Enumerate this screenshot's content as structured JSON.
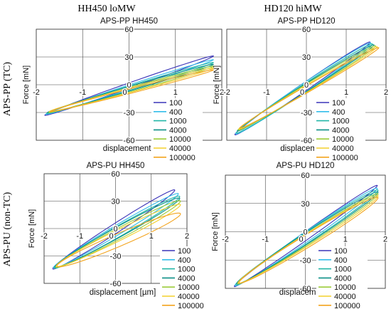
{
  "column_headers": [
    "HH450 loMW",
    "HD120 hiMW"
  ],
  "row_headers": [
    "APS-PP (TC)",
    "APS-PU (non-TC)"
  ],
  "series_colors": [
    "#3a33b8",
    "#33bdea",
    "#22b7a7",
    "#0b8f86",
    "#9ccc3a",
    "#f4d02c",
    "#f3a41f"
  ],
  "chart_data": [
    {
      "type": "line",
      "title": "APS-PP  HH450",
      "xlabel": "displacement [µm]",
      "ylabel": "Force [mN]",
      "xlim": [
        -2,
        2
      ],
      "ylim": [
        -60,
        60
      ],
      "xticks": [
        "-2",
        "-1",
        "0",
        "1",
        "2"
      ],
      "yticks": [
        "-60",
        "-30",
        "0",
        "30",
        "60"
      ],
      "grid": true,
      "legend": "right",
      "series": [
        {
          "name": "100",
          "x_range": [
            -1.82,
            1.82
          ],
          "y_at_xmin": -33,
          "y_at_xmax": 31,
          "loop_width": 6
        },
        {
          "name": "400",
          "x_range": [
            -1.8,
            1.82
          ],
          "y_at_xmin": -32,
          "y_at_xmax": 27,
          "loop_width": 5
        },
        {
          "name": "1000",
          "x_range": [
            -1.78,
            1.82
          ],
          "y_at_xmin": -31,
          "y_at_xmax": 24,
          "loop_width": 5
        },
        {
          "name": "4000",
          "x_range": [
            -1.76,
            1.82
          ],
          "y_at_xmin": -30,
          "y_at_xmax": 22,
          "loop_width": 5
        },
        {
          "name": "10000",
          "x_range": [
            -1.74,
            1.82
          ],
          "y_at_xmin": -30,
          "y_at_xmax": 20,
          "loop_width": 5
        },
        {
          "name": "40000",
          "x_range": [
            -1.72,
            1.82
          ],
          "y_at_xmin": -29,
          "y_at_xmax": 18,
          "loop_width": 5
        },
        {
          "name": "100000",
          "x_range": [
            -1.7,
            1.82
          ],
          "y_at_xmin": -29,
          "y_at_xmax": 16,
          "loop_width": 5
        }
      ]
    },
    {
      "type": "line",
      "title": "APS-PP HD120",
      "xlabel": "displacement [µm]",
      "ylabel": "Force [mN]",
      "xlim": [
        -2,
        2
      ],
      "ylim": [
        -60,
        60
      ],
      "xticks": [
        "-2",
        "-1",
        "0",
        "1",
        "2"
      ],
      "yticks": [
        "-60",
        "-30",
        "0",
        "30",
        "60"
      ],
      "grid": true,
      "legend": "right",
      "series": [
        {
          "name": "100",
          "x_range": [
            -1.8,
            1.6
          ],
          "y_at_xmin": -54,
          "y_at_xmax": 46,
          "loop_width": 10
        },
        {
          "name": "400",
          "x_range": [
            -1.78,
            1.62
          ],
          "y_at_xmin": -53,
          "y_at_xmax": 45,
          "loop_width": 11
        },
        {
          "name": "1000",
          "x_range": [
            -1.76,
            1.66
          ],
          "y_at_xmin": -52,
          "y_at_xmax": 44,
          "loop_width": 10
        },
        {
          "name": "4000",
          "x_range": [
            -1.74,
            1.7
          ],
          "y_at_xmin": -50,
          "y_at_xmax": 43,
          "loop_width": 9
        },
        {
          "name": "10000",
          "x_range": [
            -1.72,
            1.74
          ],
          "y_at_xmin": -49,
          "y_at_xmax": 42,
          "loop_width": 9
        },
        {
          "name": "40000",
          "x_range": [
            -1.7,
            1.78
          ],
          "y_at_xmin": -48,
          "y_at_xmax": 41,
          "loop_width": 8
        },
        {
          "name": "100000",
          "x_range": [
            -1.68,
            1.82
          ],
          "y_at_xmin": -47,
          "y_at_xmax": 40,
          "loop_width": 8
        }
      ]
    },
    {
      "type": "line",
      "title": "APS-PU  HH450",
      "xlabel": "displacement [µm]",
      "ylabel": "Force [mN]",
      "xlim": [
        -2,
        2
      ],
      "ylim": [
        -60,
        60
      ],
      "xticks": [
        "-2",
        "-1",
        "0",
        "1",
        "2"
      ],
      "yticks": [
        "-60",
        "-30",
        "0",
        "30",
        "60"
      ],
      "grid": true,
      "legend": "right",
      "series": [
        {
          "name": "100",
          "x_range": [
            -1.76,
            1.66
          ],
          "y_at_xmin": -44,
          "y_at_xmax": 42,
          "loop_width": 12
        },
        {
          "name": "400",
          "x_range": [
            -1.74,
            1.76
          ],
          "y_at_xmin": -43,
          "y_at_xmax": 38,
          "loop_width": 12
        },
        {
          "name": "1000",
          "x_range": [
            -1.72,
            1.8
          ],
          "y_at_xmin": -43,
          "y_at_xmax": 35,
          "loop_width": 13
        },
        {
          "name": "4000",
          "x_range": [
            -1.7,
            1.8
          ],
          "y_at_xmin": -42,
          "y_at_xmax": 33,
          "loop_width": 13
        },
        {
          "name": "10000",
          "x_range": [
            -1.68,
            1.82
          ],
          "y_at_xmin": -42,
          "y_at_xmax": 30,
          "loop_width": 13
        },
        {
          "name": "40000",
          "x_range": [
            -1.66,
            1.82
          ],
          "y_at_xmin": -41,
          "y_at_xmax": 26,
          "loop_width": 13
        },
        {
          "name": "100000",
          "x_range": [
            -1.64,
            1.82
          ],
          "y_at_xmin": -41,
          "y_at_xmax": 16,
          "loop_width": 15
        }
      ]
    },
    {
      "type": "line",
      "title": "APS-PU  HD120",
      "xlabel": "displacement [µm]",
      "ylabel": "Force [mN]",
      "xlim": [
        -2,
        2
      ],
      "ylim": [
        -60,
        60
      ],
      "xticks": [
        "-2",
        "-1",
        "0",
        "1",
        "2"
      ],
      "yticks": [
        "-60",
        "-30",
        "0",
        "30",
        "60"
      ],
      "grid": true,
      "legend": "right",
      "series": [
        {
          "name": "100",
          "x_range": [
            -1.78,
            1.8
          ],
          "y_at_xmin": -58,
          "y_at_xmax": 49,
          "loop_width": 10
        },
        {
          "name": "400",
          "x_range": [
            -1.76,
            1.8
          ],
          "y_at_xmin": -57,
          "y_at_xmax": 46,
          "loop_width": 12
        },
        {
          "name": "1000",
          "x_range": [
            -1.74,
            1.82
          ],
          "y_at_xmin": -56,
          "y_at_xmax": 44,
          "loop_width": 13
        },
        {
          "name": "4000",
          "x_range": [
            -1.72,
            1.82
          ],
          "y_at_xmin": -55,
          "y_at_xmax": 42,
          "loop_width": 13
        },
        {
          "name": "10000",
          "x_range": [
            -1.7,
            1.82
          ],
          "y_at_xmin": -55,
          "y_at_xmax": 40,
          "loop_width": 13
        },
        {
          "name": "40000",
          "x_range": [
            -1.68,
            1.82
          ],
          "y_at_xmin": -54,
          "y_at_xmax": 38,
          "loop_width": 14
        },
        {
          "name": "100000",
          "x_range": [
            -1.66,
            1.82
          ],
          "y_at_xmin": -54,
          "y_at_xmax": 36,
          "loop_width": 15
        }
      ]
    }
  ]
}
